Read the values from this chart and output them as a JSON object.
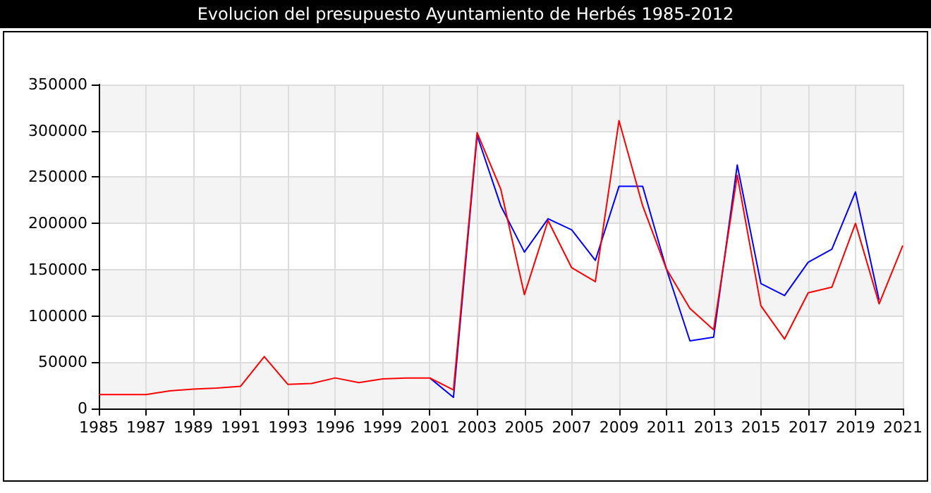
{
  "chart_data": {
    "type": "line",
    "title": "Evolucion del presupuesto Ayuntamiento de Herbés 1985-2012",
    "categories": [
      "1985",
      null,
      "1987",
      null,
      "1989",
      null,
      "1991",
      null,
      "1993",
      null,
      "1996",
      null,
      "1999",
      null,
      "2001",
      null,
      "2003",
      null,
      "2005",
      null,
      "2007",
      null,
      "2009",
      null,
      "2011",
      null,
      "2013",
      null,
      "2015",
      null,
      "2017",
      null,
      "2019",
      null,
      "2021"
    ],
    "series": [
      {
        "color": "#0000ff",
        "values": [
          null,
          null,
          null,
          null,
          null,
          null,
          null,
          null,
          null,
          null,
          null,
          null,
          null,
          null,
          33000,
          12000,
          295000,
          219000,
          169000,
          205000,
          193000,
          160000,
          240000,
          240000,
          151000,
          73000,
          77000,
          263000,
          135000,
          122000,
          158000,
          172000,
          234000,
          117000,
          null
        ]
      },
      {
        "color": "#ff0000",
        "values": [
          15000,
          15000,
          15000,
          19000,
          21000,
          22000,
          24000,
          56000,
          26000,
          27000,
          33000,
          28000,
          32000,
          33000,
          33000,
          20000,
          298000,
          237000,
          123000,
          203000,
          152000,
          137000,
          311000,
          219000,
          151000,
          108000,
          85000,
          252000,
          111000,
          75000,
          125000,
          131000,
          200000,
          113000,
          176000
        ]
      }
    ],
    "ylim": [
      0,
      350000
    ],
    "yticks": [
      0,
      50000,
      100000,
      150000,
      200000,
      250000,
      300000,
      350000
    ],
    "grid": true,
    "marker": "none",
    "line_style": "solid"
  }
}
